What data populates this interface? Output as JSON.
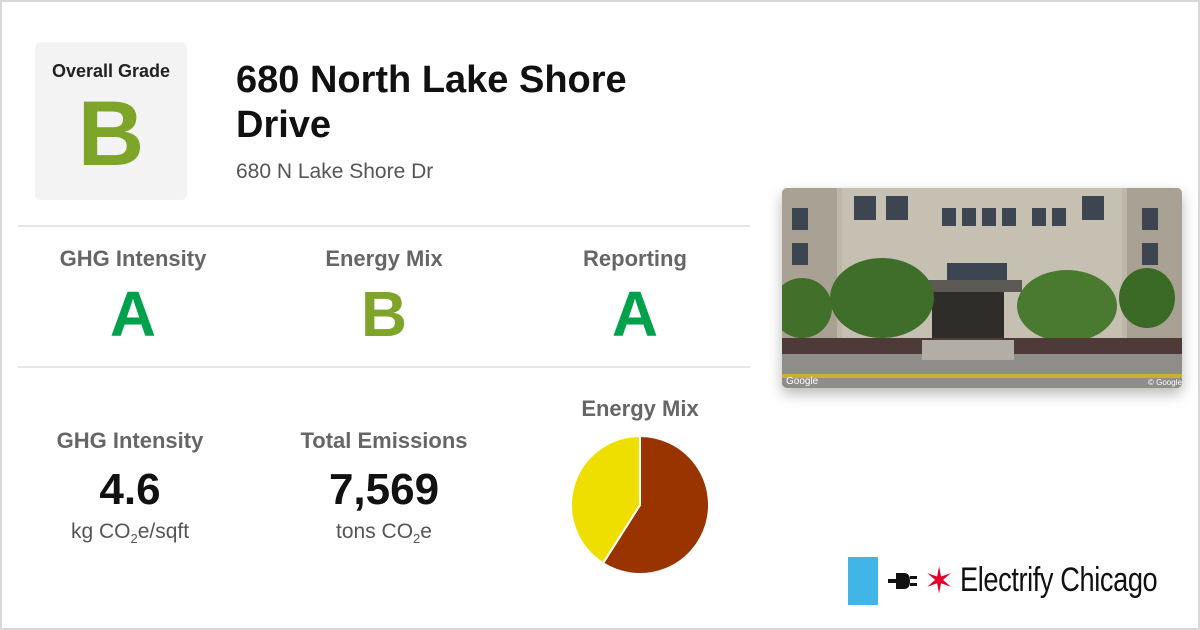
{
  "colors": {
    "grade_a": "#00a14b",
    "grade_b": "#7fa42a",
    "pie_slice_1": "#993300",
    "pie_slice_2": "#efdf00",
    "chicago_blue": "#41b6e6",
    "chicago_red": "#e4002b"
  },
  "overall": {
    "label": "Overall Grade",
    "grade": "B"
  },
  "building": {
    "name": "680 North Lake Shore Drive",
    "address": "680 N Lake Shore Dr"
  },
  "grades": [
    {
      "title": "GHG Intensity",
      "letter": "A"
    },
    {
      "title": "Energy Mix",
      "letter": "B"
    },
    {
      "title": "Reporting",
      "letter": "A"
    }
  ],
  "stats": {
    "ghg": {
      "title": "GHG Intensity",
      "value": "4.6",
      "unit_prefix": "kg CO",
      "unit_sub": "2",
      "unit_suffix": "e/sqft"
    },
    "emissions": {
      "title": "Total Emissions",
      "value": "7,569",
      "unit_prefix": "tons CO",
      "unit_sub": "2",
      "unit_suffix": "e"
    }
  },
  "energy_mix": {
    "title": "Energy Mix"
  },
  "chart_data": {
    "type": "pie",
    "title": "Energy Mix",
    "slices": [
      {
        "value": 59,
        "color": "#993300"
      },
      {
        "value": 41,
        "color": "#efdf00"
      }
    ]
  },
  "photo": {
    "google_left": "Google",
    "google_right": "© Google"
  },
  "brand": {
    "name": "Electrify Chicago",
    "icons": [
      "chicago-flag-icon",
      "plug-icon",
      "star-icon"
    ]
  }
}
